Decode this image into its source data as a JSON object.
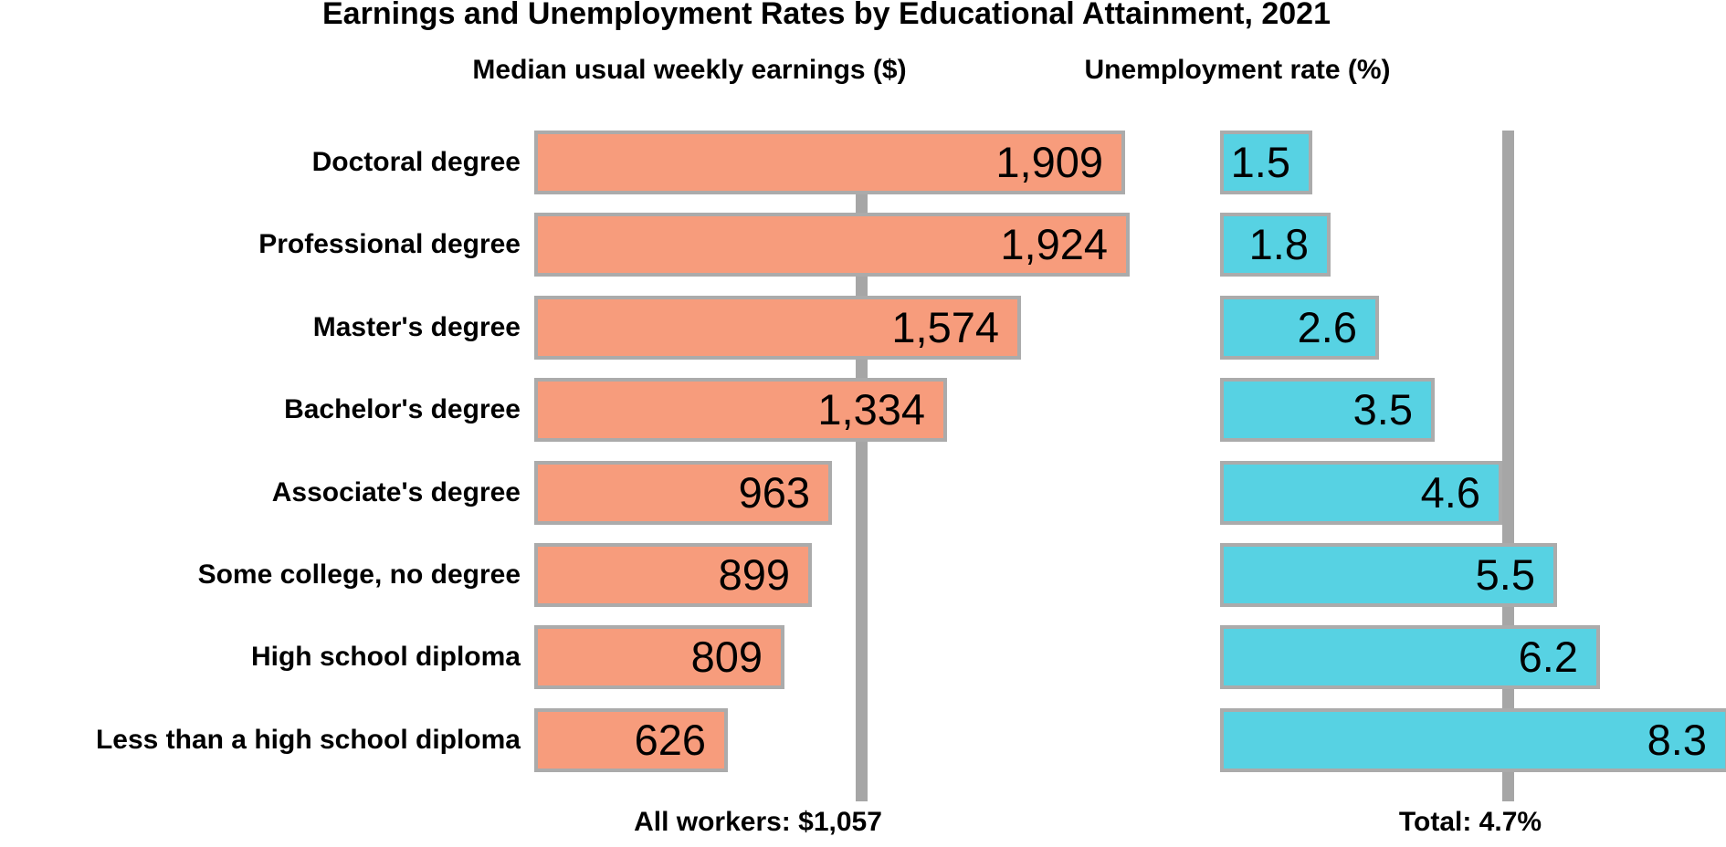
{
  "title": "Earnings and Unemployment Rates by Educational Attainment, 2021",
  "chart_data": {
    "type": "bar",
    "orientation": "horizontal",
    "grid": false,
    "legend": "none",
    "categories": [
      "Doctoral degree",
      "Professional degree",
      "Master's degree",
      "Bachelor's degree",
      "Associate's degree",
      "Some college, no degree",
      "High school diploma",
      "Less than a high school diploma"
    ],
    "panels": [
      {
        "heading": "Median usual weekly earnings ($)",
        "series_name": "Median usual weekly earnings",
        "unit": "$ per week",
        "values": [
          1909,
          1924,
          1574,
          1334,
          963,
          899,
          809,
          626
        ],
        "value_labels": [
          "1,909",
          "1,924",
          "1,574",
          "1,334",
          "963",
          "899",
          "809",
          "626"
        ],
        "xlim": [
          0,
          1980
        ],
        "bar_color": "#F79C7C",
        "reference_line": {
          "value": 1057,
          "label": "All workers: $1,057"
        }
      },
      {
        "heading": "Unemployment rate (%)",
        "series_name": "Unemployment rate",
        "unit": "%",
        "values": [
          1.5,
          1.8,
          2.6,
          3.5,
          4.6,
          5.5,
          6.2,
          8.3
        ],
        "value_labels": [
          "1.5",
          "1.8",
          "2.6",
          "3.5",
          "4.6",
          "5.5",
          "6.2",
          "8.3"
        ],
        "xlim": [
          0,
          8.3
        ],
        "bar_color": "#57D2E3",
        "reference_line": {
          "value": 4.7,
          "label": "Total: 4.7%"
        }
      }
    ],
    "colors": {
      "bar_border_gray": "#ABABAB",
      "reference_line_gray": "#A6A6A6",
      "text": "#000000",
      "background": "#FFFFFF"
    }
  }
}
